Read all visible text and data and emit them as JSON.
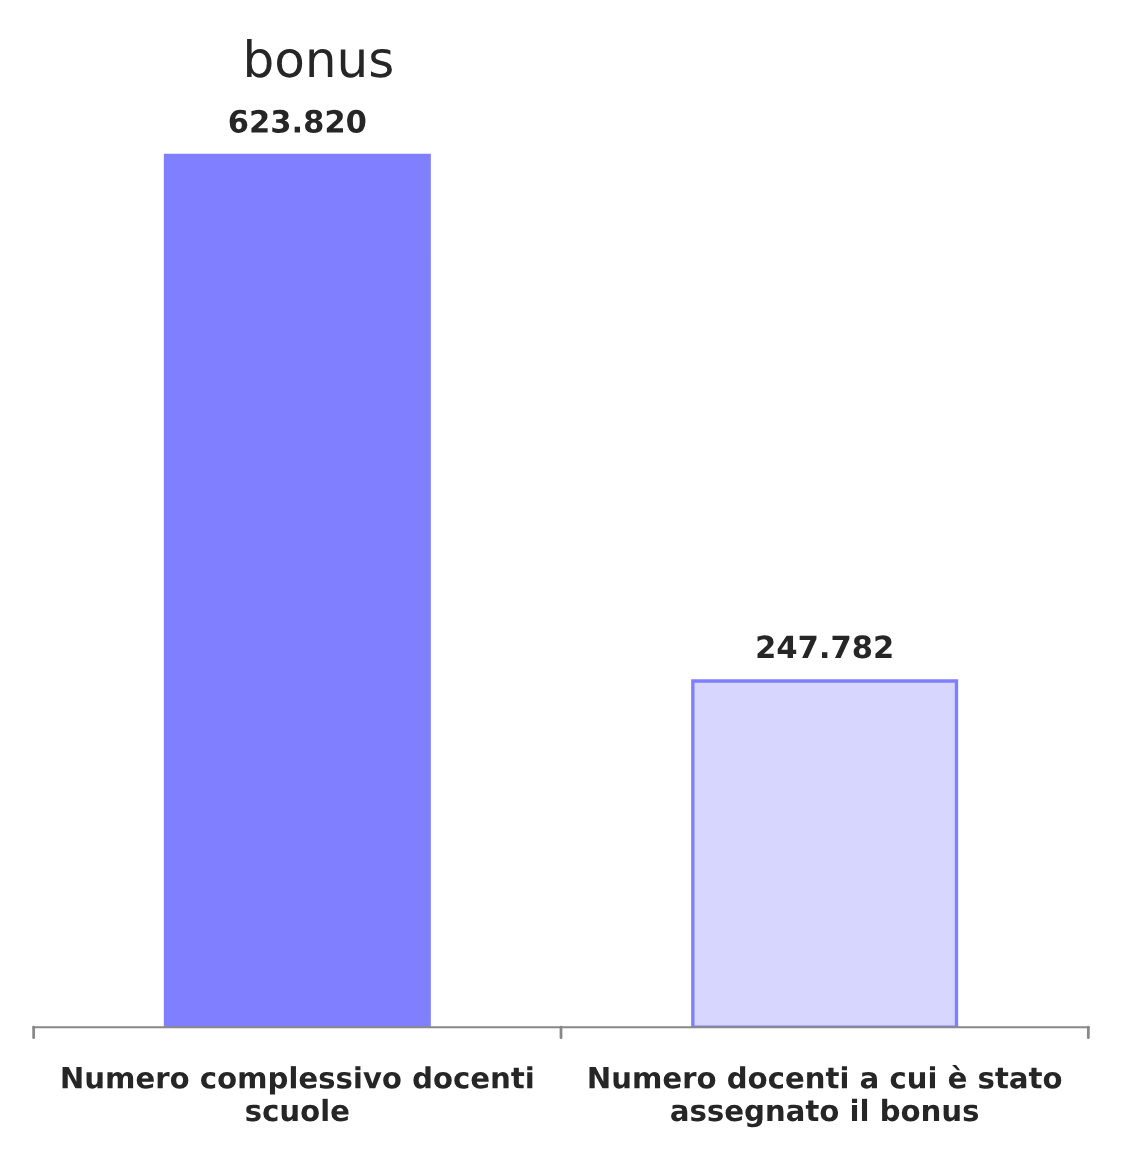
{
  "chart_data": {
    "type": "bar",
    "title": "bonus",
    "categories": [
      "Numero complessivo docenti\nscuole",
      "Numero docenti a cui è stato\nassegnato il bonus"
    ],
    "values": [
      623820,
      247782
    ],
    "colors": [
      "#7f7fff",
      "#d6d6ff"
    ],
    "value_labels": [
      "623.820",
      "247.782"
    ],
    "grid": false,
    "legend": false,
    "tick_labels": "x"
  }
}
